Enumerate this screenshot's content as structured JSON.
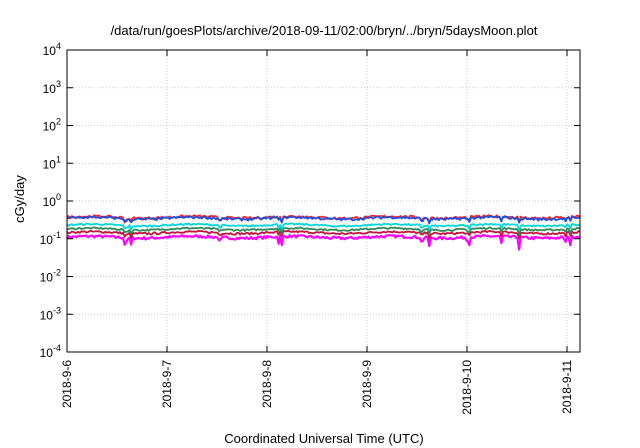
{
  "chart_data": {
    "type": "line",
    "title": "/data/run/goesPlots/archive/2018-09-11/02:00/bryn/../bryn/5daysMoon.plot",
    "xlabel": "Coordinated Universal Time (UTC)",
    "ylabel": "cGy/day",
    "y_scale": "log",
    "ylim": [
      0.0001,
      10000
    ],
    "y_ticks": [
      {
        "value": 0.0001,
        "base": "10",
        "exp": "-4"
      },
      {
        "value": 0.001,
        "base": "10",
        "exp": "-3"
      },
      {
        "value": 0.01,
        "base": "10",
        "exp": "-2"
      },
      {
        "value": 0.1,
        "base": "10",
        "exp": "-1"
      },
      {
        "value": 1,
        "base": "10",
        "exp": "0"
      },
      {
        "value": 10,
        "base": "10",
        "exp": "1"
      },
      {
        "value": 100,
        "base": "10",
        "exp": "2"
      },
      {
        "value": 1000,
        "base": "10",
        "exp": "3"
      },
      {
        "value": 10000,
        "base": "10",
        "exp": "4"
      }
    ],
    "xlim": [
      0,
      5.13
    ],
    "x_ticks": [
      {
        "value": 0,
        "label": "2018-9-6"
      },
      {
        "value": 1,
        "label": "2018-9-7"
      },
      {
        "value": 2,
        "label": "2018-9-8"
      },
      {
        "value": 3,
        "label": "2018-9-9"
      },
      {
        "value": 4,
        "label": "2018-9-10"
      },
      {
        "value": 5,
        "label": "2018-9-11"
      }
    ],
    "grid": true,
    "series": [
      {
        "color": "#ff00ff",
        "base": 0.11,
        "noise": 0.08
      },
      {
        "color": "#c0143c",
        "base": 0.145,
        "noise": 0.06
      },
      {
        "color": "#2e8b57",
        "base": 0.18,
        "noise": 0.05
      },
      {
        "color": "#00d8d8",
        "base": 0.23,
        "noise": 0.05
      },
      {
        "color": "#ff2020",
        "base": 0.37,
        "noise": 0.08
      },
      {
        "color": "#1f4fd8",
        "base": 0.35,
        "noise": 0.08
      }
    ],
    "dips": [
      {
        "x": 0.58,
        "depth": 0.45
      },
      {
        "x": 0.6,
        "depth": 0.5
      },
      {
        "x": 0.64,
        "depth": 0.4
      },
      {
        "x": 1.53,
        "depth": 0.55
      },
      {
        "x": 2.12,
        "depth": 0.45
      },
      {
        "x": 2.15,
        "depth": 0.5
      },
      {
        "x": 3.55,
        "depth": 0.6
      },
      {
        "x": 3.62,
        "depth": 0.55
      },
      {
        "x": 4.0,
        "depth": 0.45
      },
      {
        "x": 4.02,
        "depth": 0.5
      },
      {
        "x": 4.34,
        "depth": 0.55
      },
      {
        "x": 4.52,
        "depth": 0.55
      },
      {
        "x": 4.98,
        "depth": 0.5
      },
      {
        "x": 5.03,
        "depth": 0.55
      }
    ]
  }
}
